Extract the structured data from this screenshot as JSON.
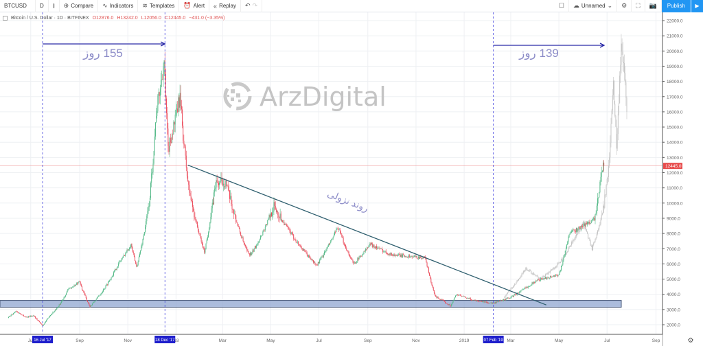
{
  "toolbar": {
    "symbol": "BTCUSD",
    "interval": "D",
    "compare": "Compare",
    "indicators": "Indicators",
    "templates": "Templates",
    "alert": "Alert",
    "replay": "Replay",
    "layout_name": "Unnamed",
    "publish": "Publish"
  },
  "legend": {
    "title": "Bitcoin / U.S. Dollar · 1D · BITFINEX",
    "open": "O12876.0",
    "high": "H13242.0",
    "low": "L12056.0",
    "close": "C12445.0",
    "change": "−431.0 (−3.35%)"
  },
  "annotations": {
    "days1": "155 روز",
    "days2": "139 روز",
    "trend": "روند نزولی",
    "watermark": "ArzDigital"
  },
  "colors": {
    "up": "#53b987",
    "down": "#eb4d5c",
    "ghost": "#c4c4c4",
    "accent": "#2196f3",
    "zone": "#8fa6d0",
    "marker": "#1e1ecc"
  },
  "chart_data": {
    "type": "candlestick",
    "symbol": "BTCUSD",
    "exchange": "BITFINEX",
    "interval": "1D",
    "ylim": [
      2000,
      22000
    ],
    "y_ticks": [
      2000,
      3000,
      4000,
      5000,
      6000,
      7000,
      8000,
      9000,
      10000,
      11000,
      12000,
      13000,
      14000,
      15000,
      16000,
      17000,
      18000,
      19000,
      20000,
      21000,
      22000
    ],
    "last_price_label": "12445.0",
    "last_price": 12445,
    "x_ticks": [
      {
        "date": "2017-07-01",
        "label": "Jul"
      },
      {
        "date": "2017-09-01",
        "label": "Sep"
      },
      {
        "date": "2017-11-01",
        "label": "Nov"
      },
      {
        "date": "2018-01-01",
        "label": "'18"
      },
      {
        "date": "2018-03-01",
        "label": "Mar"
      },
      {
        "date": "2018-05-01",
        "label": "May"
      },
      {
        "date": "2018-07-01",
        "label": "Jul"
      },
      {
        "date": "2018-09-01",
        "label": "Sep"
      },
      {
        "date": "2018-11-01",
        "label": "Nov"
      },
      {
        "date": "2019-01-01",
        "label": "2019"
      },
      {
        "date": "2019-03-01",
        "label": "Mar"
      },
      {
        "date": "2019-05-01",
        "label": "May"
      },
      {
        "date": "2019-07-01",
        "label": "Jul"
      },
      {
        "date": "2019-09-01",
        "label": "Sep"
      }
    ],
    "markers": [
      {
        "date": "2017-07-16",
        "label": "16 Jul '17"
      },
      {
        "date": "2017-12-18",
        "label": "18 Dec '17"
      },
      {
        "date": "2019-02-07",
        "label": "07 Feb '19"
      }
    ],
    "series": [
      {
        "name": "BTCUSD price (approx. closes)",
        "points": [
          [
            "2017-06-02",
            2450
          ],
          [
            "2017-06-12",
            2900
          ],
          [
            "2017-06-25",
            2500
          ],
          [
            "2017-07-05",
            2600
          ],
          [
            "2017-07-16",
            1950
          ],
          [
            "2017-07-25",
            2600
          ],
          [
            "2017-08-05",
            3200
          ],
          [
            "2017-08-17",
            4300
          ],
          [
            "2017-09-01",
            4800
          ],
          [
            "2017-09-14",
            3200
          ],
          [
            "2017-10-01",
            4300
          ],
          [
            "2017-10-20",
            6000
          ],
          [
            "2017-11-05",
            7300
          ],
          [
            "2017-11-12",
            5800
          ],
          [
            "2017-11-28",
            10000
          ],
          [
            "2017-12-07",
            16000
          ],
          [
            "2017-12-17",
            19400
          ],
          [
            "2017-12-22",
            13500
          ],
          [
            "2018-01-06",
            17000
          ],
          [
            "2018-01-17",
            11000
          ],
          [
            "2018-02-06",
            6800
          ],
          [
            "2018-02-20",
            11300
          ],
          [
            "2018-03-05",
            11400
          ],
          [
            "2018-04-01",
            6800
          ],
          [
            "2018-04-06",
            6600
          ],
          [
            "2018-05-05",
            9800
          ],
          [
            "2018-06-28",
            5900
          ],
          [
            "2018-07-25",
            8400
          ],
          [
            "2018-08-14",
            6000
          ],
          [
            "2018-09-04",
            7300
          ],
          [
            "2018-10-01",
            6600
          ],
          [
            "2018-11-13",
            6400
          ],
          [
            "2018-11-25",
            3900
          ],
          [
            "2018-12-15",
            3250
          ],
          [
            "2018-12-22",
            4000
          ],
          [
            "2019-01-10",
            3650
          ],
          [
            "2019-02-07",
            3400
          ],
          [
            "2019-03-01",
            3800
          ],
          [
            "2019-04-02",
            4900
          ],
          [
            "2019-05-01",
            5300
          ],
          [
            "2019-05-14",
            8000
          ],
          [
            "2019-06-01",
            8500
          ],
          [
            "2019-06-16",
            9000
          ],
          [
            "2019-06-26",
            12900
          ],
          [
            "2019-06-27",
            12445
          ]
        ]
      },
      {
        "name": "Fractal projection (grey)",
        "points": [
          [
            "2019-02-20",
            3800
          ],
          [
            "2019-03-05",
            4600
          ],
          [
            "2019-03-20",
            5700
          ],
          [
            "2019-04-08",
            5000
          ],
          [
            "2019-04-30",
            6000
          ],
          [
            "2019-05-20",
            7600
          ],
          [
            "2019-06-01",
            8700
          ],
          [
            "2019-06-12",
            7000
          ],
          [
            "2019-06-25",
            9200
          ],
          [
            "2019-07-04",
            13000
          ],
          [
            "2019-07-09",
            18000
          ],
          [
            "2019-07-13",
            14000
          ],
          [
            "2019-07-19",
            20800
          ],
          [
            "2019-07-22",
            19000
          ],
          [
            "2019-07-26",
            16000
          ]
        ]
      }
    ],
    "support_zone": [
      3150,
      3600
    ],
    "trendline": [
      [
        "2018-01-16",
        12500
      ],
      [
        "2019-04-15",
        3300
      ]
    ]
  }
}
